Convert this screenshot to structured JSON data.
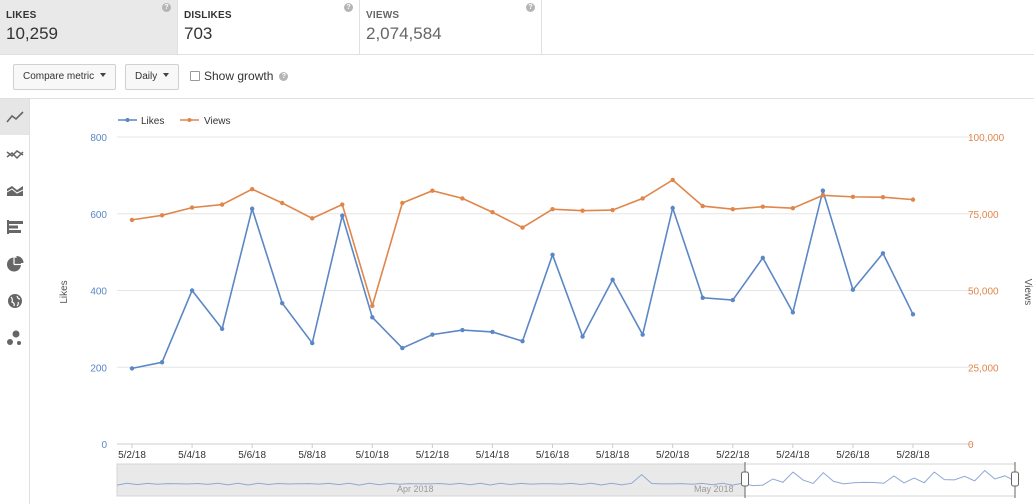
{
  "metrics": [
    {
      "label": "LIKES",
      "value": "10,259",
      "help": "?"
    },
    {
      "label": "DISLIKES",
      "value": "703",
      "help": "?"
    },
    {
      "label": "VIEWS",
      "value": "2,074,584",
      "help": "?"
    }
  ],
  "toolbar": {
    "compare_label": "Compare metric",
    "interval_label": "Daily",
    "show_growth_label": "Show growth",
    "help": "?"
  },
  "sidebar": {
    "items": [
      {
        "icon": "line-chart-icon",
        "active": true
      },
      {
        "icon": "multi-line-chart-icon",
        "active": false
      },
      {
        "icon": "area-chart-icon",
        "active": false
      },
      {
        "icon": "bar-chart-icon",
        "active": false
      },
      {
        "icon": "pie-chart-icon",
        "active": false
      },
      {
        "icon": "globe-icon",
        "active": false
      },
      {
        "icon": "bubble-chart-icon",
        "active": false
      }
    ]
  },
  "colors": {
    "likes": "#5b87c6",
    "views": "#e0864b",
    "grid": "#e6e6e6"
  },
  "chart_data": {
    "type": "line",
    "x": [
      "5/2/18",
      "5/3/18",
      "5/4/18",
      "5/5/18",
      "5/6/18",
      "5/7/18",
      "5/8/18",
      "5/9/18",
      "5/10/18",
      "5/11/18",
      "5/12/18",
      "5/13/18",
      "5/14/18",
      "5/15/18",
      "5/16/18",
      "5/17/18",
      "5/18/18",
      "5/19/18",
      "5/20/18",
      "5/21/18",
      "5/22/18",
      "5/23/18",
      "5/24/18",
      "5/25/18",
      "5/26/18",
      "5/27/18",
      "5/28/18"
    ],
    "x_tick_labels": [
      "5/2/18",
      "5/4/18",
      "5/6/18",
      "5/8/18",
      "5/10/18",
      "5/12/18",
      "5/14/18",
      "5/16/18",
      "5/18/18",
      "5/20/18",
      "5/22/18",
      "5/24/18",
      "5/26/18",
      "5/28/18"
    ],
    "series": [
      {
        "name": "Likes",
        "axis": "left",
        "values": [
          197,
          213,
          400,
          300,
          613,
          367,
          263,
          595,
          330,
          250,
          285,
          297,
          292,
          268,
          493,
          280,
          428,
          285,
          615,
          381,
          375,
          485,
          343,
          660,
          402,
          497,
          338
        ]
      },
      {
        "name": "Views",
        "axis": "right",
        "values": [
          73000,
          74500,
          77000,
          78000,
          83000,
          78500,
          73500,
          78000,
          45000,
          78500,
          82500,
          80000,
          75500,
          70500,
          76500,
          76000,
          76200,
          80000,
          86000,
          77500,
          76500,
          77300,
          76800,
          81000,
          80500,
          80400,
          79600
        ]
      }
    ],
    "ylabel_left": "Likes",
    "ylabel_right": "Views",
    "ylim_left": [
      0,
      800
    ],
    "ylim_right": [
      0,
      100000
    ],
    "yticks_left": [
      "0",
      "200",
      "400",
      "600",
      "800"
    ],
    "yticks_right": [
      "0",
      "25,000",
      "50,000",
      "75,000",
      "100,000"
    ],
    "legend_placement": "top-left",
    "grid": true,
    "navigator": {
      "labels": [
        "Apr 2018",
        "May 2018"
      ]
    }
  }
}
